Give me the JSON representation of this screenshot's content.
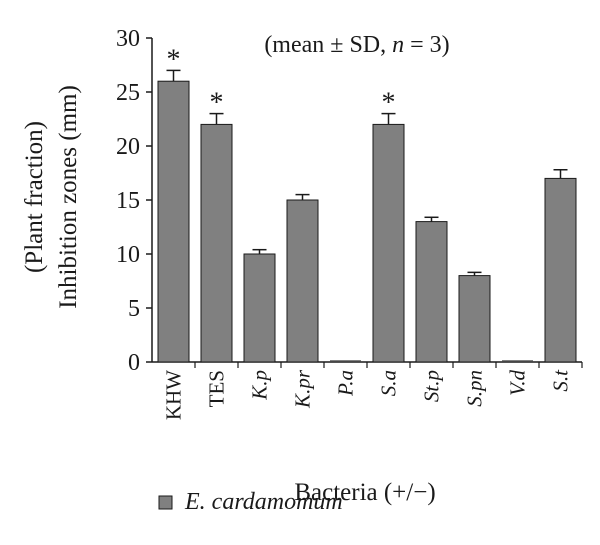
{
  "chart_data": {
    "type": "bar",
    "annotation": "(mean ± SD, n = 3)",
    "ylabel_line1": "(Plant fraction)",
    "ylabel_line2": "Inhibition zones (mm)",
    "xlabel": "Bacteria (+/−)",
    "ylim": [
      0,
      30
    ],
    "yticks": [
      0,
      5,
      10,
      15,
      20,
      25,
      30
    ],
    "categories": [
      "KHW",
      "TES",
      "K.p",
      "K.pr",
      "P.a",
      "S.a",
      "St.p",
      "S.pn",
      "V.d",
      "S.t"
    ],
    "category_italic": [
      false,
      false,
      true,
      true,
      true,
      true,
      true,
      true,
      true,
      true
    ],
    "series": [
      {
        "name": "E. cardamomum",
        "values": [
          26,
          22,
          10,
          15,
          0,
          22,
          13,
          8,
          0,
          17
        ],
        "errors": [
          1,
          1,
          0.4,
          0.5,
          0,
          1,
          0.4,
          0.3,
          0,
          0.8
        ],
        "significant": [
          true,
          true,
          false,
          false,
          false,
          true,
          false,
          false,
          false,
          false
        ]
      }
    ],
    "significance_marker": "*",
    "bar_color": "#808080",
    "bar_edge_color": "#1a1a1a",
    "legend_position": "bottom-left"
  }
}
